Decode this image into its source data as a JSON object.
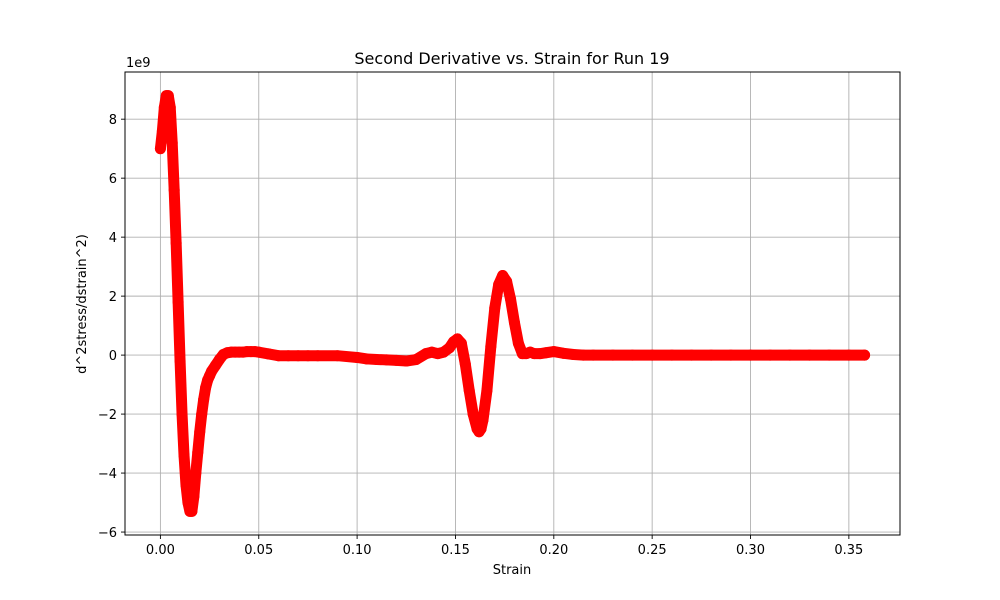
{
  "chart_data": {
    "type": "scatter",
    "title": "Second Derivative vs. Strain for Run 19",
    "xlabel": "Strain",
    "ylabel": "d^2stress/dstrain^2)",
    "y_offset_label": "1e9",
    "xlim": [
      -0.018,
      0.376
    ],
    "ylim": [
      -6.1,
      9.6
    ],
    "x_ticks": [
      0.0,
      0.05,
      0.1,
      0.15,
      0.2,
      0.25,
      0.3,
      0.35
    ],
    "x_tick_labels": [
      "0.00",
      "0.05",
      "0.10",
      "0.15",
      "0.20",
      "0.25",
      "0.30",
      "0.35"
    ],
    "y_ticks": [
      -6,
      -4,
      -2,
      0,
      2,
      4,
      6,
      8
    ],
    "y_tick_labels": [
      "−6",
      "−4",
      "−2",
      "0",
      "2",
      "4",
      "6",
      "8"
    ],
    "grid": true,
    "marker_color": "#ff0000",
    "series": [
      {
        "x": [
          0.0,
          0.001,
          0.002,
          0.003,
          0.004,
          0.005,
          0.006,
          0.007,
          0.008,
          0.009,
          0.01,
          0.011,
          0.012,
          0.013,
          0.014,
          0.015,
          0.016,
          0.017,
          0.018,
          0.019,
          0.02,
          0.021,
          0.022,
          0.023,
          0.024,
          0.025,
          0.026,
          0.028,
          0.03,
          0.032,
          0.034,
          0.036,
          0.038,
          0.04,
          0.042,
          0.044,
          0.046,
          0.048,
          0.05,
          0.055,
          0.06,
          0.065,
          0.07,
          0.075,
          0.08,
          0.09,
          0.1,
          0.105,
          0.11,
          0.115,
          0.12,
          0.125,
          0.13,
          0.135,
          0.138,
          0.141,
          0.144,
          0.147,
          0.149,
          0.151,
          0.153,
          0.155,
          0.157,
          0.159,
          0.161,
          0.162,
          0.163,
          0.164,
          0.166,
          0.168,
          0.17,
          0.172,
          0.174,
          0.176,
          0.178,
          0.18,
          0.182,
          0.184,
          0.186,
          0.188,
          0.19,
          0.193,
          0.196,
          0.2,
          0.205,
          0.21,
          0.215,
          0.22,
          0.23,
          0.24,
          0.25,
          0.26,
          0.27,
          0.28,
          0.29,
          0.3,
          0.31,
          0.32,
          0.33,
          0.34,
          0.35,
          0.358
        ],
        "y": [
          7.0,
          7.6,
          8.4,
          8.8,
          8.8,
          8.4,
          7.2,
          5.6,
          3.8,
          1.8,
          -0.2,
          -2.0,
          -3.4,
          -4.4,
          -5.0,
          -5.3,
          -5.3,
          -4.8,
          -4.0,
          -3.3,
          -2.6,
          -2.0,
          -1.5,
          -1.1,
          -0.85,
          -0.7,
          -0.55,
          -0.35,
          -0.15,
          0.02,
          0.08,
          0.1,
          0.1,
          0.1,
          0.1,
          0.12,
          0.12,
          0.12,
          0.1,
          0.04,
          -0.02,
          -0.02,
          -0.02,
          -0.02,
          -0.02,
          -0.02,
          -0.08,
          -0.13,
          -0.15,
          -0.16,
          -0.18,
          -0.2,
          -0.15,
          0.05,
          0.1,
          0.05,
          0.1,
          0.25,
          0.45,
          0.55,
          0.4,
          -0.3,
          -1.2,
          -2.0,
          -2.5,
          -2.6,
          -2.5,
          -2.2,
          -1.2,
          0.3,
          1.6,
          2.4,
          2.7,
          2.5,
          1.9,
          1.1,
          0.4,
          0.05,
          0.05,
          0.1,
          0.05,
          0.05,
          0.08,
          0.12,
          0.06,
          0.02,
          0.0,
          0.0,
          0.0,
          0.0,
          0.0,
          0.0,
          0.0,
          0.0,
          0.0,
          0.0,
          0.0,
          0.0,
          0.0,
          0.0,
          0.0,
          0.0
        ]
      }
    ]
  }
}
